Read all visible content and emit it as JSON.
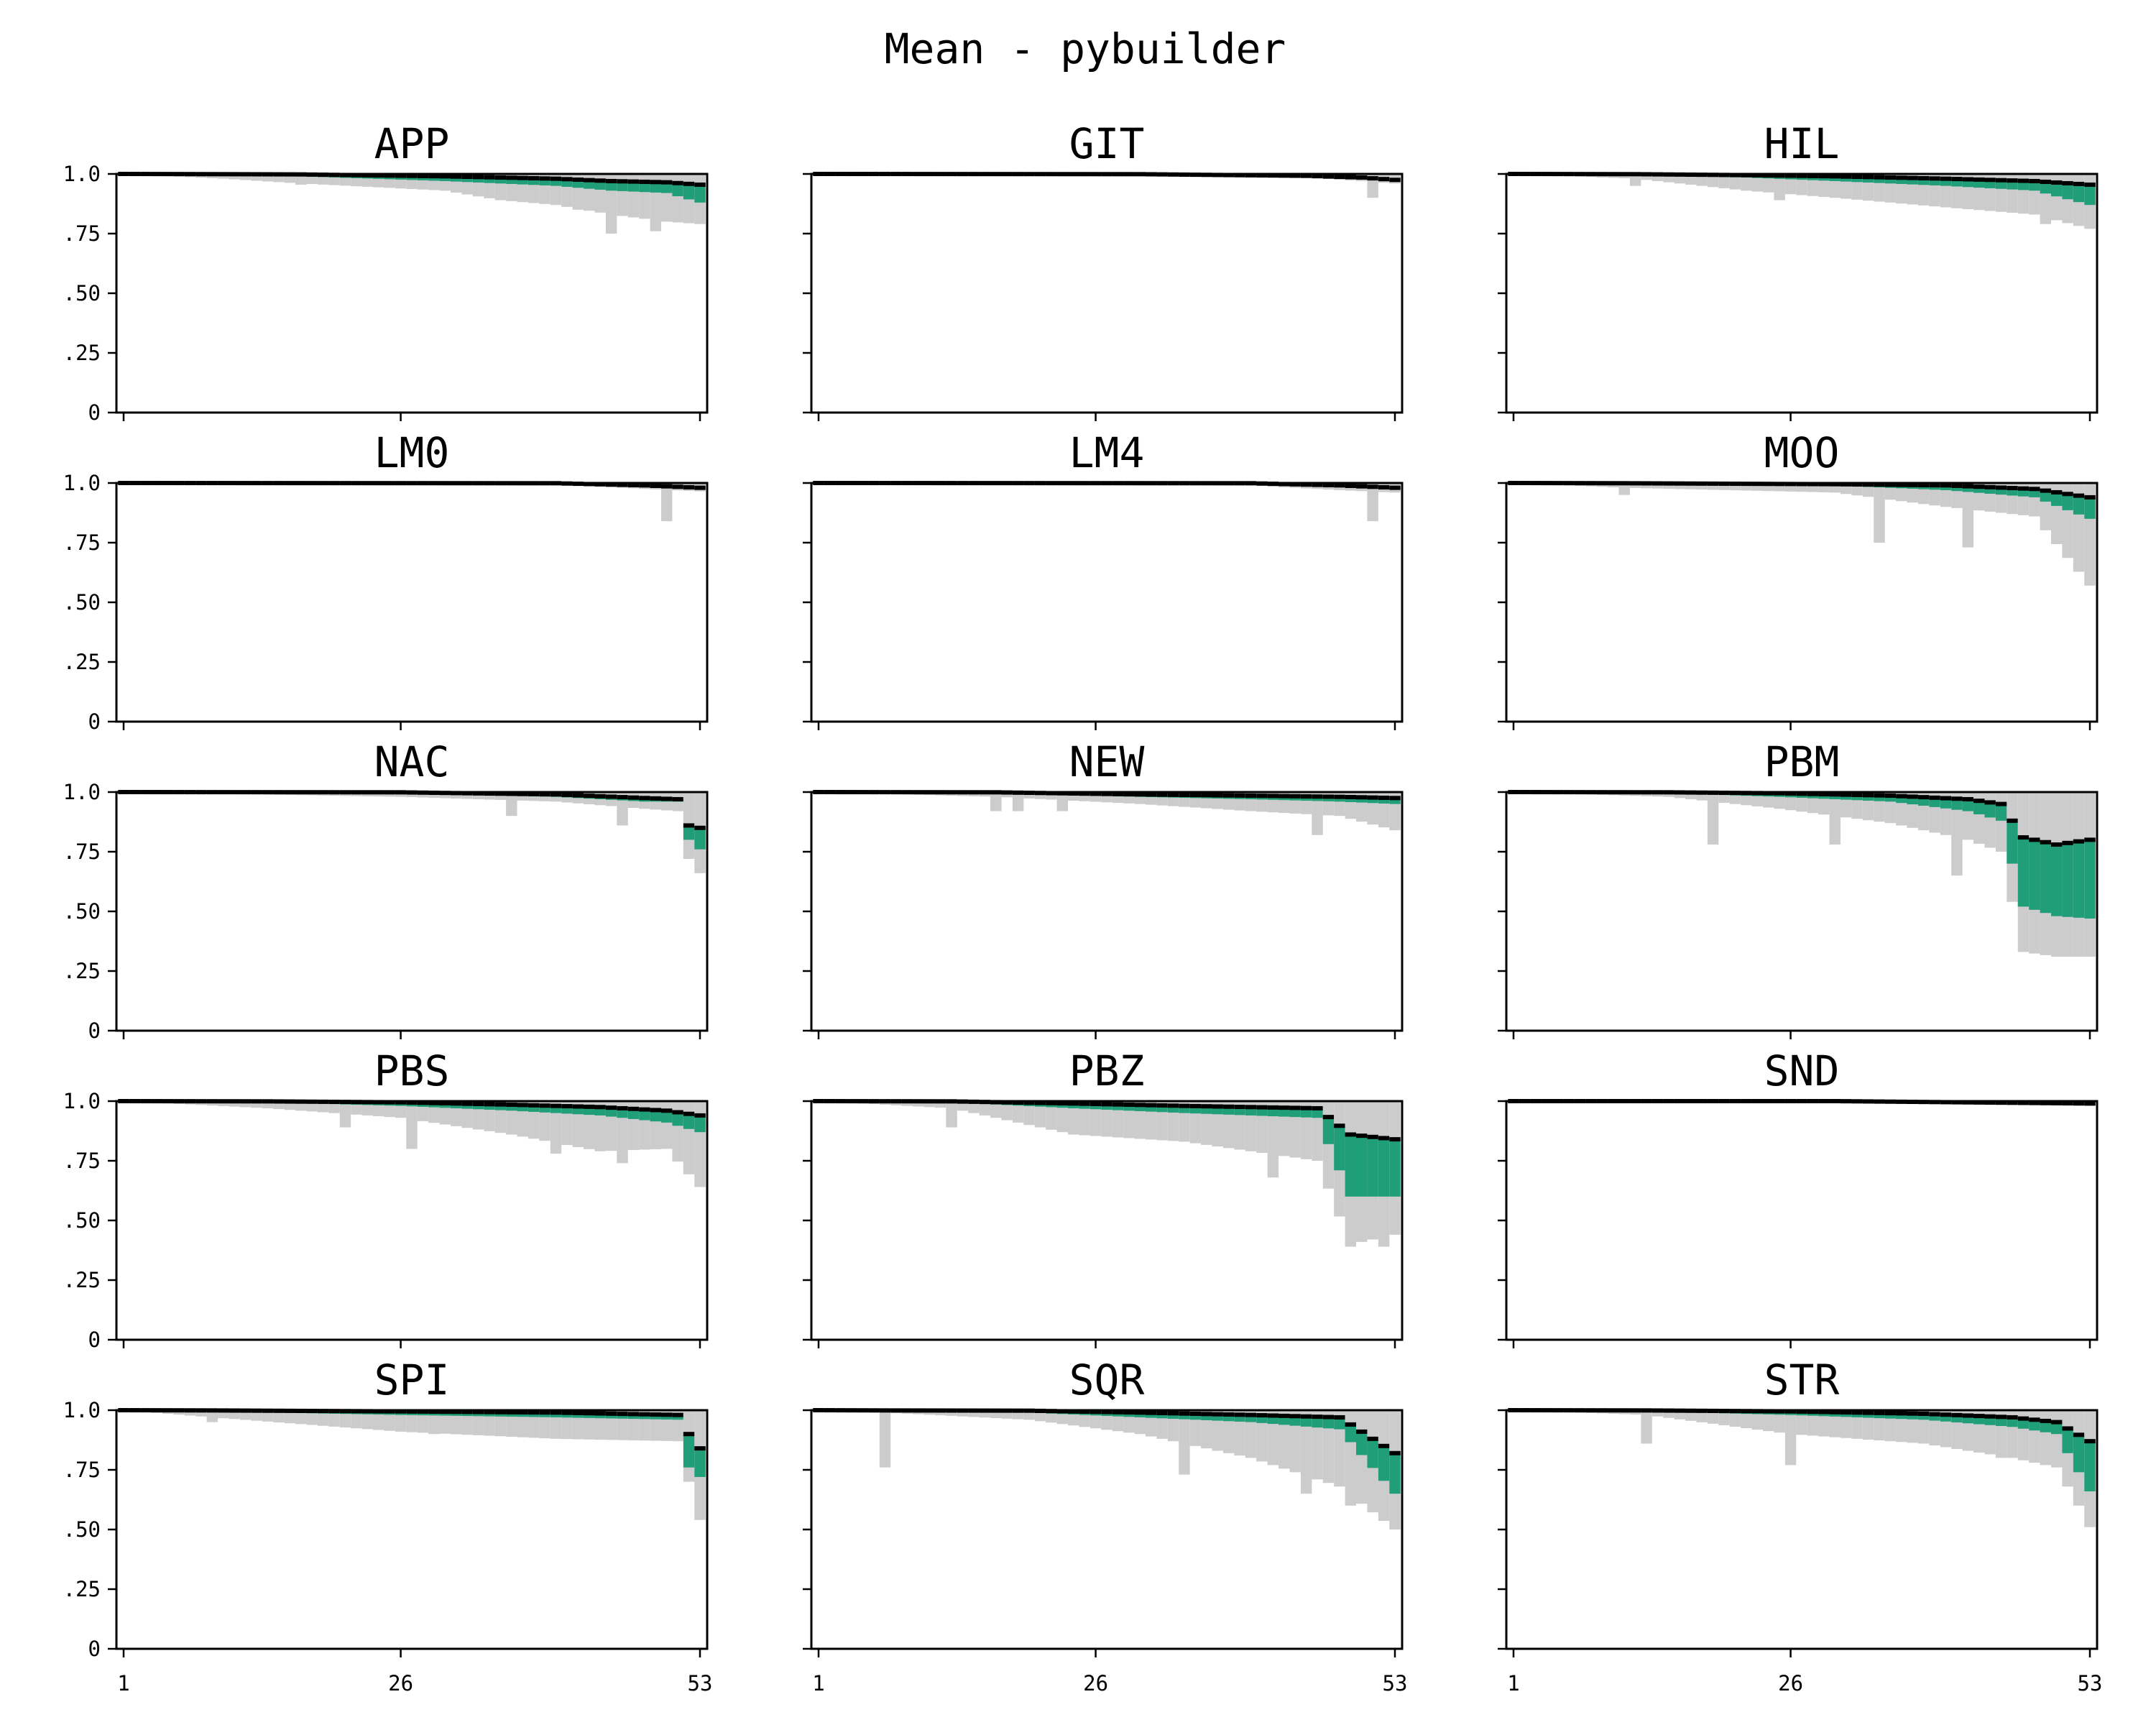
{
  "figure": {
    "title": "Mean - pybuilder"
  },
  "colors": {
    "outer_band": "#cccccc",
    "inner_band": "#1f9e78",
    "mean_line": "#000000"
  },
  "chart_data": {
    "type": "area",
    "title": "Mean - pybuilder",
    "grid": false,
    "legend": "none",
    "x_range": [
      1,
      53
    ],
    "y_range": [
      0,
      1.0
    ],
    "x_ticks": [
      {
        "v": 1,
        "label": "1"
      },
      {
        "v": 26,
        "label": "26"
      },
      {
        "v": 53,
        "label": "53"
      }
    ],
    "y_ticks": [
      {
        "v": 0,
        "label": "0"
      },
      {
        "v": 0.25,
        "label": ".25"
      },
      {
        "v": 0.5,
        "label": ".50"
      },
      {
        "v": 0.75,
        "label": ".75"
      },
      {
        "v": 1.0,
        "label": "1.0"
      }
    ],
    "panels": [
      {
        "name": "APP",
        "keys": [
          [
            1,
            1,
            1,
            1
          ],
          [
            10,
            0.98,
            0.995,
            0.999
          ],
          [
            17,
            0.96,
            0.99,
            0.998
          ],
          [
            30,
            0.93,
            0.97,
            0.99
          ],
          [
            35,
            0.89,
            0.96,
            0.985
          ],
          [
            40,
            0.87,
            0.95,
            0.98
          ],
          [
            45,
            0.83,
            0.93,
            0.97
          ],
          [
            50,
            0.8,
            0.92,
            0.965
          ],
          [
            53,
            0.79,
            0.88,
            0.955
          ]
        ],
        "spikes": [
          [
            17,
            0.955
          ],
          [
            22,
            0.955
          ],
          [
            42,
            0.85
          ],
          [
            45,
            0.75
          ],
          [
            49,
            0.76
          ],
          [
            53,
            0.79
          ]
        ]
      },
      {
        "name": "GIT",
        "keys": [
          [
            1,
            1,
            1,
            1
          ],
          [
            30,
            0.995,
            0.998,
            0.999
          ],
          [
            45,
            0.985,
            0.99,
            0.992
          ],
          [
            50,
            0.97,
            0.98,
            0.985
          ],
          [
            53,
            0.96,
            0.97,
            0.975
          ]
        ],
        "spikes": [
          [
            51,
            0.9
          ]
        ]
      },
      {
        "name": "HIL",
        "keys": [
          [
            1,
            1,
            1,
            1
          ],
          [
            12,
            0.98,
            0.995,
            0.999
          ],
          [
            22,
            0.93,
            0.985,
            0.995
          ],
          [
            30,
            0.9,
            0.97,
            0.99
          ],
          [
            40,
            0.86,
            0.95,
            0.98
          ],
          [
            48,
            0.83,
            0.93,
            0.97
          ],
          [
            53,
            0.77,
            0.87,
            0.955
          ]
        ],
        "spikes": [
          [
            12,
            0.95
          ],
          [
            22,
            0.93
          ],
          [
            25,
            0.89
          ],
          [
            38,
            0.87
          ],
          [
            49,
            0.79
          ],
          [
            53,
            0.77
          ]
        ]
      },
      {
        "name": "LM0",
        "keys": [
          [
            1,
            1,
            1,
            1
          ],
          [
            40,
            0.995,
            0.998,
            0.999
          ],
          [
            48,
            0.975,
            0.985,
            0.99
          ],
          [
            53,
            0.965,
            0.975,
            0.98
          ]
        ],
        "spikes": [
          [
            50,
            0.84
          ]
        ]
      },
      {
        "name": "LM4",
        "keys": [
          [
            1,
            1,
            1,
            1
          ],
          [
            40,
            0.99,
            0.996,
            0.999
          ],
          [
            48,
            0.97,
            0.985,
            0.99
          ],
          [
            53,
            0.96,
            0.975,
            0.98
          ]
        ],
        "spikes": [
          [
            51,
            0.84
          ]
        ]
      },
      {
        "name": "MOO",
        "keys": [
          [
            1,
            1,
            1,
            1
          ],
          [
            11,
            0.98,
            0.995,
            0.999
          ],
          [
            30,
            0.96,
            0.99,
            0.995
          ],
          [
            40,
            0.9,
            0.97,
            0.99
          ],
          [
            48,
            0.86,
            0.94,
            0.975
          ],
          [
            53,
            0.57,
            0.85,
            0.94
          ]
        ],
        "spikes": [
          [
            11,
            0.95
          ],
          [
            34,
            0.75
          ],
          [
            42,
            0.73
          ],
          [
            50,
            0.76
          ],
          [
            53,
            0.57
          ]
        ]
      },
      {
        "name": "NAC",
        "keys": [
          [
            1,
            1,
            1,
            1
          ],
          [
            26,
            0.98,
            0.995,
            0.999
          ],
          [
            40,
            0.96,
            0.98,
            0.99
          ],
          [
            48,
            0.93,
            0.96,
            0.975
          ],
          [
            51,
            0.92,
            0.96,
            0.97
          ],
          [
            52,
            0.72,
            0.8,
            0.86
          ],
          [
            53,
            0.66,
            0.76,
            0.85
          ]
        ],
        "spikes": [
          [
            36,
            0.9
          ],
          [
            46,
            0.86
          ]
        ]
      },
      {
        "name": "NEW",
        "keys": [
          [
            1,
            1,
            1,
            1
          ],
          [
            17,
            0.98,
            0.995,
            0.999
          ],
          [
            30,
            0.95,
            0.98,
            0.99
          ],
          [
            40,
            0.92,
            0.97,
            0.985
          ],
          [
            48,
            0.9,
            0.96,
            0.98
          ],
          [
            53,
            0.84,
            0.95,
            0.975
          ]
        ],
        "spikes": [
          [
            17,
            0.92
          ],
          [
            19,
            0.92
          ],
          [
            23,
            0.92
          ],
          [
            46,
            0.82
          ],
          [
            53,
            0.84
          ]
        ]
      },
      {
        "name": "PBM",
        "keys": [
          [
            1,
            1,
            1,
            1
          ],
          [
            15,
            0.98,
            0.995,
            0.999
          ],
          [
            25,
            0.93,
            0.98,
            0.995
          ],
          [
            35,
            0.87,
            0.96,
            0.985
          ],
          [
            42,
            0.8,
            0.92,
            0.97
          ],
          [
            45,
            0.75,
            0.88,
            0.95
          ],
          [
            47,
            0.33,
            0.52,
            0.81
          ],
          [
            50,
            0.31,
            0.48,
            0.78
          ],
          [
            53,
            0.31,
            0.47,
            0.8
          ]
        ],
        "spikes": [
          [
            19,
            0.78
          ],
          [
            30,
            0.78
          ],
          [
            41,
            0.65
          ]
        ]
      },
      {
        "name": "PBS",
        "keys": [
          [
            1,
            1,
            1,
            1
          ],
          [
            14,
            0.97,
            0.995,
            0.999
          ],
          [
            26,
            0.93,
            0.98,
            0.995
          ],
          [
            36,
            0.86,
            0.96,
            0.985
          ],
          [
            44,
            0.79,
            0.94,
            0.975
          ],
          [
            50,
            0.8,
            0.91,
            0.96
          ],
          [
            53,
            0.64,
            0.87,
            0.94
          ]
        ],
        "spikes": [
          [
            21,
            0.89
          ],
          [
            27,
            0.8
          ],
          [
            40,
            0.78
          ],
          [
            46,
            0.74
          ],
          [
            53,
            0.64
          ]
        ]
      },
      {
        "name": "PBZ",
        "keys": [
          [
            1,
            1,
            1,
            1
          ],
          [
            13,
            0.97,
            0.995,
            0.999
          ],
          [
            24,
            0.86,
            0.97,
            0.99
          ],
          [
            34,
            0.83,
            0.95,
            0.98
          ],
          [
            46,
            0.75,
            0.93,
            0.97
          ],
          [
            49,
            0.4,
            0.6,
            0.86
          ],
          [
            53,
            0.44,
            0.6,
            0.84
          ]
        ],
        "spikes": [
          [
            13,
            0.89
          ],
          [
            42,
            0.68
          ],
          [
            49,
            0.39
          ],
          [
            52,
            0.39
          ]
        ]
      },
      {
        "name": "SND",
        "keys": [
          [
            1,
            1,
            1,
            1
          ],
          [
            30,
            0.997,
            0.999,
            1
          ],
          [
            53,
            0.98,
            0.985,
            0.99
          ]
        ],
        "spikes": []
      },
      {
        "name": "SPI",
        "keys": [
          [
            1,
            1,
            1,
            1
          ],
          [
            9,
            0.97,
            0.995,
            0.999
          ],
          [
            26,
            0.91,
            0.98,
            0.995
          ],
          [
            40,
            0.88,
            0.97,
            0.99
          ],
          [
            51,
            0.87,
            0.96,
            0.98
          ],
          [
            52,
            0.7,
            0.76,
            0.9
          ],
          [
            53,
            0.54,
            0.72,
            0.84
          ]
        ],
        "spikes": [
          [
            9,
            0.95
          ],
          [
            29,
            0.9
          ],
          [
            38,
            0.89
          ]
        ]
      },
      {
        "name": "SQR",
        "keys": [
          [
            1,
            1,
            1,
            1
          ],
          [
            7,
            0.99,
            0.995,
            0.999
          ],
          [
            20,
            0.96,
            0.99,
            0.998
          ],
          [
            30,
            0.9,
            0.97,
            0.99
          ],
          [
            40,
            0.8,
            0.95,
            0.98
          ],
          [
            48,
            0.68,
            0.92,
            0.97
          ],
          [
            53,
            0.5,
            0.65,
            0.82
          ]
        ],
        "spikes": [
          [
            7,
            0.76
          ],
          [
            34,
            0.73
          ],
          [
            45,
            0.65
          ],
          [
            49,
            0.6
          ],
          [
            53,
            0.5
          ]
        ]
      },
      {
        "name": "STR",
        "keys": [
          [
            1,
            1,
            1,
            1
          ],
          [
            13,
            0.98,
            0.995,
            0.999
          ],
          [
            26,
            0.9,
            0.98,
            0.995
          ],
          [
            38,
            0.86,
            0.96,
            0.985
          ],
          [
            46,
            0.8,
            0.93,
            0.97
          ],
          [
            50,
            0.76,
            0.9,
            0.95
          ],
          [
            53,
            0.52,
            0.66,
            0.87
          ]
        ],
        "spikes": [
          [
            13,
            0.86
          ],
          [
            26,
            0.77
          ],
          [
            45,
            0.8
          ],
          [
            53,
            0.51
          ]
        ]
      }
    ]
  }
}
